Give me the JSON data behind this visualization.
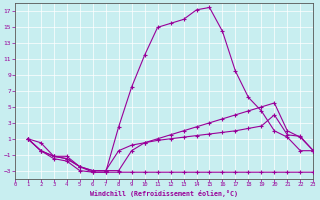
{
  "xlabel": "Windchill (Refroidissement éolien,°C)",
  "bg_color": "#c8eef0",
  "line_color": "#990099",
  "grid_color": "#ffffff",
  "xlim": [
    0,
    23
  ],
  "ylim": [
    -4,
    18
  ],
  "yticks": [
    -3,
    -1,
    1,
    3,
    5,
    7,
    9,
    11,
    13,
    15,
    17
  ],
  "xticks": [
    0,
    1,
    2,
    3,
    4,
    5,
    6,
    7,
    8,
    9,
    10,
    11,
    12,
    13,
    14,
    15,
    16,
    17,
    18,
    19,
    20,
    21,
    22,
    23
  ],
  "lines": [
    {
      "x": [
        1,
        2,
        3,
        4,
        5,
        6,
        7,
        8,
        9,
        10,
        11,
        12,
        13,
        14,
        15,
        16,
        17,
        18,
        19,
        20,
        21,
        22,
        23
      ],
      "y": [
        1,
        0.5,
        -1.2,
        -1.2,
        -2.5,
        -3.2,
        -3.2,
        2.5,
        7.5,
        11.5,
        15.0,
        15.5,
        16.0,
        17.2,
        17.5,
        14.5,
        9.5,
        6.2,
        4.5,
        2.0,
        1.2,
        -0.5,
        -0.5
      ]
    },
    {
      "x": [
        1,
        2,
        3,
        4,
        5,
        6,
        7,
        8,
        9,
        10,
        11,
        12,
        13,
        14,
        15,
        16,
        17,
        18,
        19,
        20,
        21,
        22,
        23
      ],
      "y": [
        1,
        -0.5,
        -1.5,
        -1.8,
        -3.0,
        -3.2,
        -3.2,
        -3.2,
        -3.2,
        -3.2,
        -3.2,
        -3.2,
        -3.2,
        -3.2,
        -3.2,
        -3.2,
        -3.2,
        -3.2,
        -3.2,
        -3.2,
        -3.2,
        -3.2,
        -3.2
      ]
    },
    {
      "x": [
        1,
        2,
        3,
        4,
        5,
        6,
        7,
        8,
        9,
        10,
        11,
        12,
        13,
        14,
        15,
        16,
        17,
        18,
        19,
        20,
        21,
        22,
        23
      ],
      "y": [
        1,
        -0.5,
        -1.2,
        -1.5,
        -2.5,
        -3.0,
        -3.0,
        -3.0,
        -0.5,
        0.5,
        1.0,
        1.5,
        2.0,
        2.5,
        3.0,
        3.5,
        4.0,
        4.5,
        5.0,
        5.5,
        2.0,
        1.2,
        -0.5
      ]
    },
    {
      "x": [
        1,
        2,
        3,
        4,
        5,
        6,
        7,
        8,
        9,
        10,
        11,
        12,
        13,
        14,
        15,
        16,
        17,
        18,
        19,
        20,
        21,
        22,
        23
      ],
      "y": [
        1,
        -0.5,
        -1.2,
        -1.5,
        -2.5,
        -3.0,
        -3.0,
        -0.5,
        0.2,
        0.5,
        0.8,
        1.0,
        1.2,
        1.4,
        1.6,
        1.8,
        2.0,
        2.3,
        2.6,
        4.0,
        1.5,
        1.3,
        -0.5
      ]
    }
  ]
}
